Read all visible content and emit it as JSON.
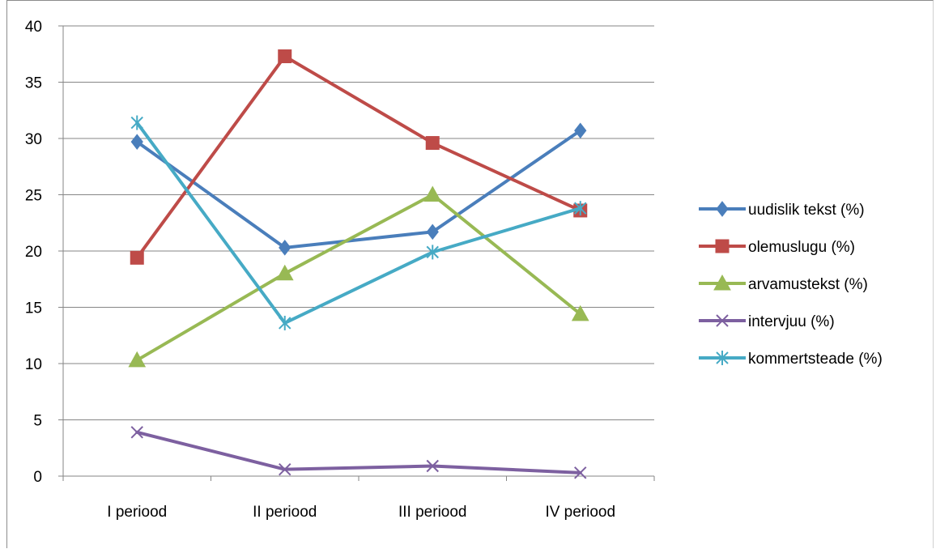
{
  "chart_data": {
    "type": "line",
    "title": "",
    "xlabel": "",
    "ylabel": "",
    "categories": [
      "I periood",
      "II periood",
      "III periood",
      "IV periood"
    ],
    "ylim": [
      0,
      40
    ],
    "yticks": [
      0,
      5,
      10,
      15,
      20,
      25,
      30,
      35,
      40
    ],
    "grid": true,
    "legend_position": "right",
    "series": [
      {
        "name": "uudislik tekst (%)",
        "values": [
          29.7,
          20.3,
          21.7,
          30.7
        ],
        "color": "#4a7ebb",
        "marker": "diamond"
      },
      {
        "name": "olemuslugu (%)",
        "values": [
          19.4,
          37.3,
          29.6,
          23.6
        ],
        "color": "#be4b48",
        "marker": "square"
      },
      {
        "name": "arvamustekst (%)",
        "values": [
          10.3,
          18.0,
          25.0,
          14.4
        ],
        "color": "#98b954",
        "marker": "triangle"
      },
      {
        "name": "intervjuu (%)",
        "values": [
          3.9,
          0.6,
          0.9,
          0.3
        ],
        "color": "#7d60a0",
        "marker": "x"
      },
      {
        "name": "kommertsteade (%)",
        "values": [
          31.4,
          13.6,
          19.9,
          23.8
        ],
        "color": "#46aac5",
        "marker": "star"
      }
    ]
  }
}
